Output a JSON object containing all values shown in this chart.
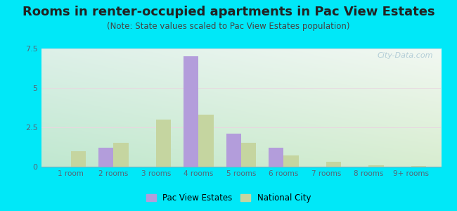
{
  "title": "Rooms in renter-occupied apartments in Pac View Estates",
  "subtitle": "(Note: State values scaled to Pac View Estates population)",
  "categories": [
    "1 room",
    "2 rooms",
    "3 rooms",
    "4 rooms",
    "5 rooms",
    "6 rooms",
    "7 rooms",
    "8 rooms",
    "9+ rooms"
  ],
  "pac_view": [
    0,
    1.2,
    0,
    7.0,
    2.1,
    1.2,
    0,
    0,
    0
  ],
  "national_city": [
    1.0,
    1.5,
    3.0,
    3.3,
    1.5,
    0.7,
    0.3,
    0.1,
    0.05
  ],
  "pac_view_color": "#b39ddb",
  "national_city_color": "#c5d5a0",
  "ylim": [
    0,
    7.5
  ],
  "yticks": [
    0,
    2.5,
    5,
    7.5
  ],
  "bar_width": 0.35,
  "bg_top_left": "#c8ecd8",
  "bg_top_right": "#e8f5f0",
  "bg_bottom_left": "#d5edd0",
  "bg_bottom_right": "#f0f8e8",
  "outer_bg": "#00e8f8",
  "title_fontsize": 13,
  "subtitle_fontsize": 8.5,
  "tick_color": "#556677",
  "legend_labels": [
    "Pac View Estates",
    "National City"
  ],
  "watermark": "City-Data.com"
}
